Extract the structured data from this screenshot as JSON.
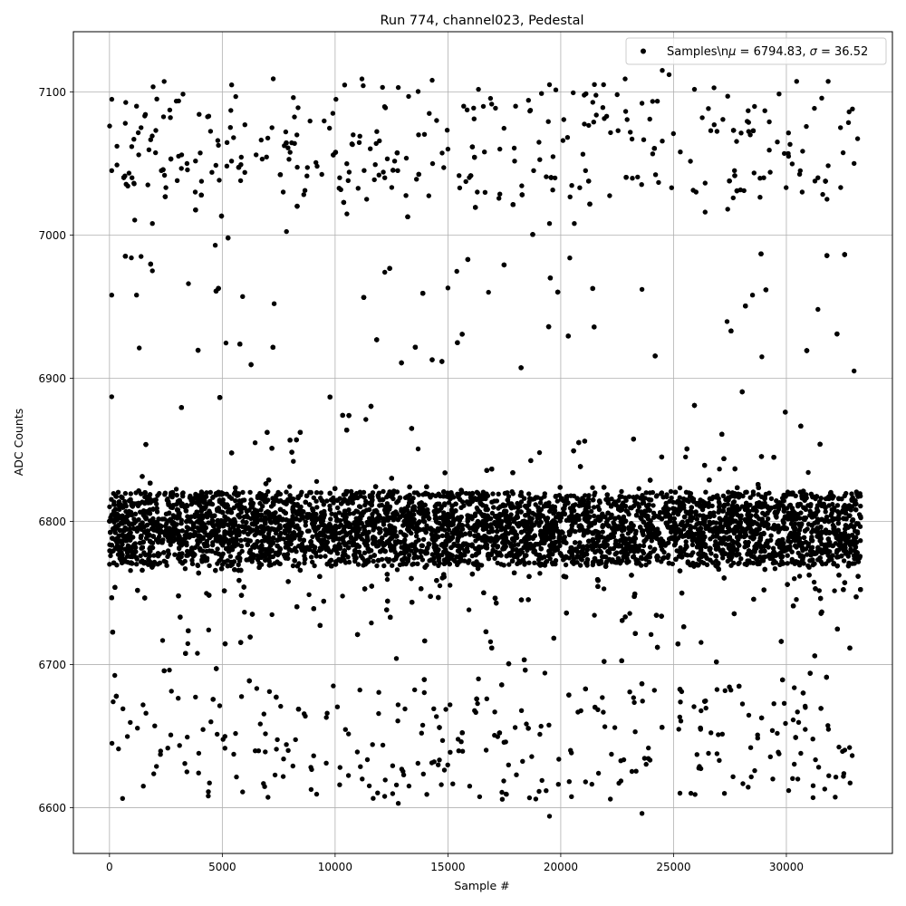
{
  "chart_data": {
    "type": "scatter",
    "title": "Run 774, channel023, Pedestal",
    "xlabel": "Sample #",
    "ylabel": "ADC Counts",
    "xlim": [
      -1600,
      34700
    ],
    "ylim": [
      6568,
      7142
    ],
    "xticks": [
      0,
      5000,
      10000,
      15000,
      20000,
      25000,
      30000
    ],
    "yticks": [
      6600,
      6700,
      6800,
      6900,
      7000,
      7100
    ],
    "grid": true,
    "legend": {
      "placement": "top-right",
      "label": "Samples\\n$\\mu$ = 6794.83, $\\sigma$ = 36.52"
    },
    "series": [
      {
        "name": "Samples\\n$\\mu$ = 6794.83, $\\sigma$ = 36.52",
        "color": "#000000",
        "n_points": 33300,
        "mean": 6794.83,
        "sigma": 36.52,
        "x_range": [
          0,
          33300
        ],
        "y_range": [
          6594,
          7114
        ]
      }
    ],
    "sample_points": [
      [
        100,
        7045
      ],
      [
        330,
        7062
      ],
      [
        700,
        7078
      ],
      [
        1000,
        7040
      ],
      [
        1200,
        7090
      ],
      [
        1400,
        7075
      ],
      [
        1700,
        7035
      ],
      [
        2100,
        7095
      ],
      [
        2300,
        7045
      ],
      [
        2700,
        7082
      ],
      [
        3000,
        7038
      ],
      [
        3200,
        7056
      ],
      [
        3800,
        7030
      ],
      [
        4400,
        7083
      ],
      [
        4800,
        7066
      ],
      [
        5500,
        7068
      ],
      [
        6000,
        7077
      ],
      [
        6500,
        7056
      ],
      [
        7200,
        7075
      ],
      [
        7700,
        7030
      ],
      [
        8200,
        7064
      ],
      [
        9200,
        7048
      ],
      [
        9900,
        7085
      ],
      [
        10200,
        7040
      ],
      [
        10800,
        7070
      ],
      [
        11400,
        7025
      ],
      [
        12200,
        7040
      ],
      [
        12800,
        7103
      ],
      [
        13700,
        7070
      ],
      [
        14500,
        7080
      ],
      [
        15000,
        7060
      ],
      [
        15700,
        7090
      ],
      [
        16300,
        7030
      ],
      [
        17300,
        7060
      ],
      [
        18000,
        7090
      ],
      [
        18800,
        7045
      ],
      [
        19500,
        7105
      ],
      [
        20100,
        7066
      ],
      [
        21100,
        7045
      ],
      [
        21900,
        7105
      ],
      [
        22500,
        7098
      ],
      [
        23600,
        7092
      ],
      [
        24500,
        7115
      ],
      [
        24800,
        7112
      ],
      [
        25300,
        7058
      ],
      [
        26000,
        7030
      ],
      [
        26800,
        7077
      ],
      [
        27700,
        7045
      ],
      [
        28400,
        7070
      ],
      [
        29000,
        7040
      ],
      [
        29600,
        7065
      ],
      [
        30100,
        7055
      ],
      [
        30700,
        7030
      ],
      [
        31400,
        7040
      ],
      [
        31800,
        7025
      ],
      [
        32400,
        7075
      ],
      [
        33000,
        7050
      ],
      [
        100,
        6958
      ],
      [
        1200,
        6958
      ],
      [
        1400,
        6985
      ],
      [
        1900,
        7008
      ],
      [
        1900,
        6975
      ],
      [
        3500,
        6966
      ],
      [
        5900,
        6957
      ],
      [
        7300,
        6952
      ],
      [
        12200,
        6974
      ],
      [
        15000,
        6963
      ],
      [
        16800,
        6960
      ],
      [
        19500,
        7008
      ],
      [
        20400,
        6984
      ],
      [
        20600,
        7008
      ],
      [
        23600,
        6962
      ],
      [
        26400,
        7016
      ],
      [
        27400,
        7018
      ],
      [
        28500,
        6958
      ],
      [
        31400,
        6948
      ],
      [
        100,
        6887
      ],
      [
        33000,
        6905
      ],
      [
        19500,
        6594
      ],
      [
        23600,
        6596
      ],
      [
        12800,
        6603
      ],
      [
        22200,
        6606
      ],
      [
        1500,
        6615
      ],
      [
        5900,
        6611
      ],
      [
        10200,
        6616
      ],
      [
        11200,
        6620
      ],
      [
        21100,
        6618
      ],
      [
        29400,
        6620
      ],
      [
        31700,
        6613
      ],
      [
        400,
        6641
      ],
      [
        32800,
        6642
      ]
    ]
  }
}
